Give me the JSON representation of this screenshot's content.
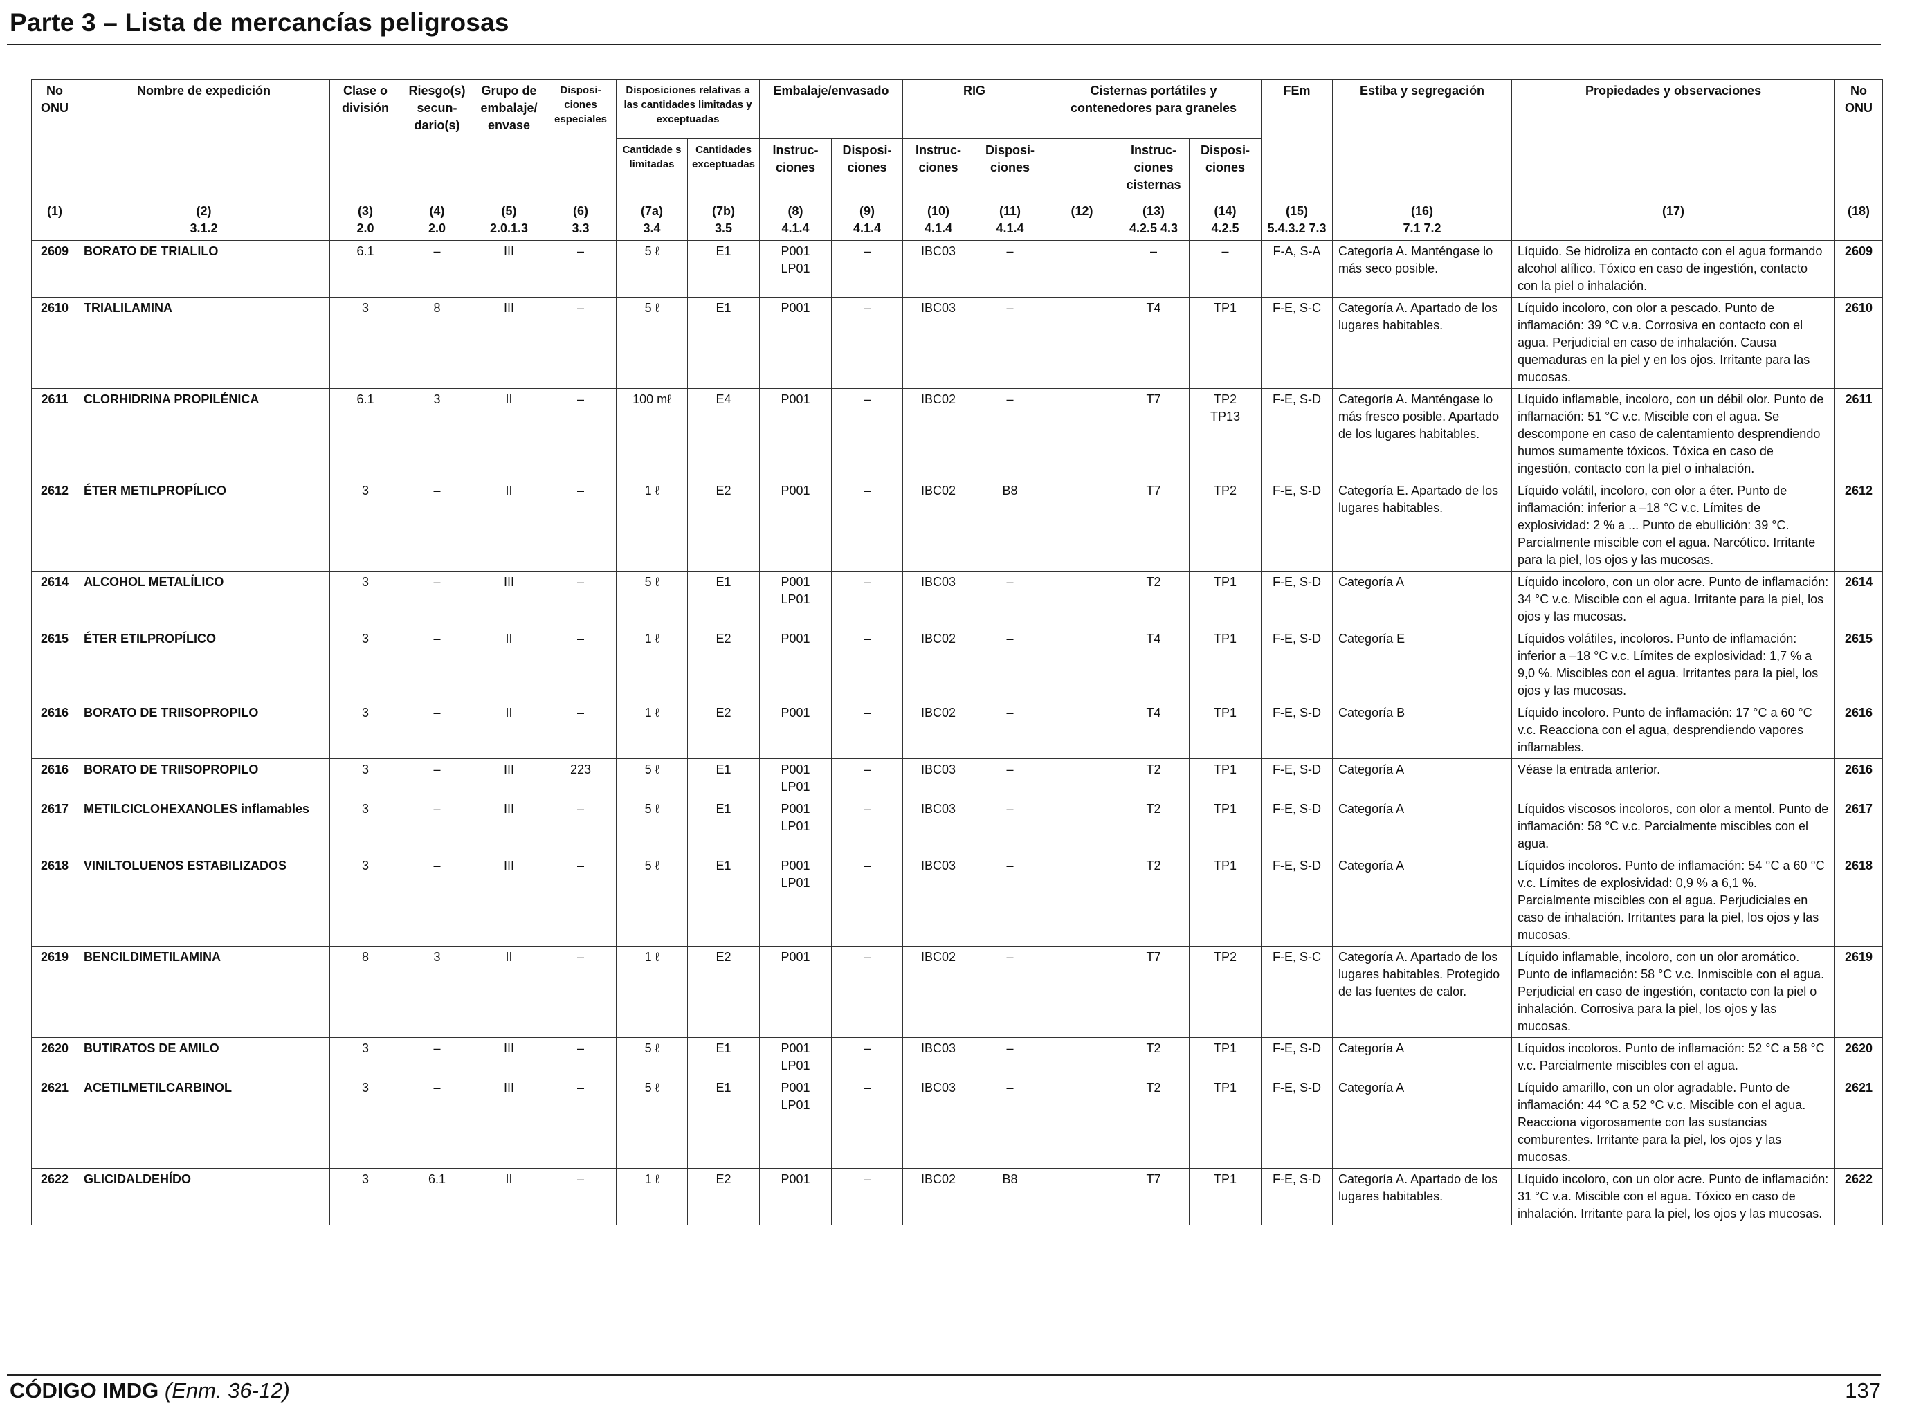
{
  "page": {
    "title": "Parte 3 – Lista de mercancías peligrosas",
    "footer_code": "CÓDIGO IMDG",
    "footer_amendment": "(Enm. 36-12)",
    "page_number": "137"
  },
  "headers": {
    "no_onu": "No ONU",
    "nombre": "Nombre de expedición",
    "clase": "Clase o división",
    "riesgos": "Riesgo(s) secun- dario(s)",
    "grupo": "Grupo de embalaje/ envase",
    "disposiciones_especiales": "Disposi- ciones especiales",
    "disposiciones_cantidades": "Disposiciones relativas a las cantidades limitadas y exceptuadas",
    "cantidades_limitadas": "Cantidade s limitadas",
    "cantidades_exceptuadas": "Cantidades exceptuadas",
    "embalaje": "Embalaje/envasado",
    "embalaje_instrucciones": "Instruc- ciones",
    "embalaje_disposiciones": "Disposi- ciones",
    "rig": "RIG",
    "rig_instrucciones": "Instruc- ciones",
    "rig_disposiciones": "Disposi- ciones",
    "cisternas": "Cisternas portátiles y contenedores para graneles",
    "cisternas_instrucciones": "Instruc- ciones cisternas",
    "cisternas_disposiciones": "Disposi- ciones",
    "fem": "FEm",
    "estiba": "Estiba y segregación",
    "propiedades": "Propiedades y observaciones",
    "no_onu_right": "No ONU"
  },
  "column_numbers": [
    {
      "n": "(1)",
      "ref": ""
    },
    {
      "n": "(2)",
      "ref": "3.1.2"
    },
    {
      "n": "(3)",
      "ref": "2.0"
    },
    {
      "n": "(4)",
      "ref": "2.0"
    },
    {
      "n": "(5)",
      "ref": "2.0.1.3"
    },
    {
      "n": "(6)",
      "ref": "3.3"
    },
    {
      "n": "(7a)",
      "ref": "3.4"
    },
    {
      "n": "(7b)",
      "ref": "3.5"
    },
    {
      "n": "(8)",
      "ref": "4.1.4"
    },
    {
      "n": "(9)",
      "ref": "4.1.4"
    },
    {
      "n": "(10)",
      "ref": "4.1.4"
    },
    {
      "n": "(11)",
      "ref": "4.1.4"
    },
    {
      "n": "(12)",
      "ref": ""
    },
    {
      "n": "(13)",
      "ref": "4.2.5 4.3"
    },
    {
      "n": "(14)",
      "ref": "4.2.5"
    },
    {
      "n": "(15)",
      "ref": "5.4.3.2 7.3"
    },
    {
      "n": "(16)",
      "ref": "7.1 7.2"
    },
    {
      "n": "(17)",
      "ref": ""
    },
    {
      "n": "(18)",
      "ref": ""
    }
  ],
  "rows": [
    {
      "un": "2609",
      "name": "BORATO DE TRIALILO",
      "clase": "6.1",
      "riesgo": "–",
      "grupo": "III",
      "disp_esp": "–",
      "cant_lim": "5 ℓ",
      "cant_exc": "E1",
      "emb_instr": "P001 LP01",
      "emb_disp": "–",
      "rig_instr": "IBC03",
      "rig_disp": "–",
      "col12": "",
      "cist_instr": "–",
      "cist_disp": "–",
      "fem": "F-A, S-A",
      "estiba": "Categoría A. Manténgase lo más seco posible.",
      "propiedades": "Líquido. Se hidroliza en contacto con el agua formando alcohol alílico. Tóxico en caso de ingestión, contacto con la piel o inhalación."
    },
    {
      "un": "2610",
      "name": "TRIALILAMINA",
      "clase": "3",
      "riesgo": "8",
      "grupo": "III",
      "disp_esp": "–",
      "cant_lim": "5 ℓ",
      "cant_exc": "E1",
      "emb_instr": "P001",
      "emb_disp": "–",
      "rig_instr": "IBC03",
      "rig_disp": "–",
      "col12": "",
      "cist_instr": "T4",
      "cist_disp": "TP1",
      "fem": "F-E, S-C",
      "estiba": "Categoría A. Apartado de los lugares habitables.",
      "propiedades": "Líquido incoloro, con olor a pescado. Punto de inflamación: 39 °C v.a. Corrosiva en contacto con el agua. Perjudicial en caso de inhalación. Causa quemaduras en la piel y en los ojos. Irritante para las mucosas."
    },
    {
      "un": "2611",
      "name": "CLORHIDRINA PROPILÉNICA",
      "clase": "6.1",
      "riesgo": "3",
      "grupo": "II",
      "disp_esp": "–",
      "cant_lim": "100 mℓ",
      "cant_exc": "E4",
      "emb_instr": "P001",
      "emb_disp": "–",
      "rig_instr": "IBC02",
      "rig_disp": "–",
      "col12": "",
      "cist_instr": "T7",
      "cist_disp": "TP2 TP13",
      "fem": "F-E, S-D",
      "estiba": "Categoría A. Manténgase lo más fresco posible. Apartado de los lugares habitables.",
      "propiedades": "Líquido inflamable, incoloro, con un débil olor. Punto de inflamación: 51 °C v.c. Miscible con el agua. Se descompone en caso de calentamiento desprendiendo humos sumamente tóxicos. Tóxica en caso de ingestión, contacto con la piel o inhalación."
    },
    {
      "un": "2612",
      "name": "ÉTER METILPROPÍLICO",
      "clase": "3",
      "riesgo": "–",
      "grupo": "II",
      "disp_esp": "–",
      "cant_lim": "1 ℓ",
      "cant_exc": "E2",
      "emb_instr": "P001",
      "emb_disp": "–",
      "rig_instr": "IBC02",
      "rig_disp": "B8",
      "col12": "",
      "cist_instr": "T7",
      "cist_disp": "TP2",
      "fem": "F-E, S-D",
      "estiba": "Categoría E. Apartado de los lugares habitables.",
      "propiedades": "Líquido volátil, incoloro, con olor a éter. Punto de inflamación: inferior a –18 °C v.c. Límites de explosividad: 2 % a ... Punto de ebullición: 39 °C. Parcialmente miscible con el agua. Narcótico. Irritante para la piel, los ojos y las mucosas."
    },
    {
      "un": "2614",
      "name": "ALCOHOL METALÍLICO",
      "clase": "3",
      "riesgo": "–",
      "grupo": "III",
      "disp_esp": "–",
      "cant_lim": "5 ℓ",
      "cant_exc": "E1",
      "emb_instr": "P001 LP01",
      "emb_disp": "–",
      "rig_instr": "IBC03",
      "rig_disp": "–",
      "col12": "",
      "cist_instr": "T2",
      "cist_disp": "TP1",
      "fem": "F-E, S-D",
      "estiba": "Categoría A",
      "propiedades": "Líquido incoloro, con un olor acre. Punto de inflamación: 34 °C v.c. Miscible con el agua. Irritante para la piel, los ojos y las mucosas."
    },
    {
      "un": "2615",
      "name": "ÉTER ETILPROPÍLICO",
      "clase": "3",
      "riesgo": "–",
      "grupo": "II",
      "disp_esp": "–",
      "cant_lim": "1 ℓ",
      "cant_exc": "E2",
      "emb_instr": "P001",
      "emb_disp": "–",
      "rig_instr": "IBC02",
      "rig_disp": "–",
      "col12": "",
      "cist_instr": "T4",
      "cist_disp": "TP1",
      "fem": "F-E, S-D",
      "estiba": "Categoría E",
      "propiedades": "Líquidos volátiles, incoloros. Punto de inflamación: inferior a –18 °C v.c. Límites de explosividad: 1,7 % a 9,0 %. Miscibles con el agua. Irritantes para la piel, los ojos y las mucosas."
    },
    {
      "un": "2616",
      "name": "BORATO DE TRIISOPROPILO",
      "clase": "3",
      "riesgo": "–",
      "grupo": "II",
      "disp_esp": "–",
      "cant_lim": "1 ℓ",
      "cant_exc": "E2",
      "emb_instr": "P001",
      "emb_disp": "–",
      "rig_instr": "IBC02",
      "rig_disp": "–",
      "col12": "",
      "cist_instr": "T4",
      "cist_disp": "TP1",
      "fem": "F-E, S-D",
      "estiba": "Categoría B",
      "propiedades": "Líquido incoloro. Punto de inflamación: 17 °C a 60 °C v.c. Reacciona con el agua, desprendiendo vapores inflamables."
    },
    {
      "un": "2616",
      "name": "BORATO DE TRIISOPROPILO",
      "clase": "3",
      "riesgo": "–",
      "grupo": "III",
      "disp_esp": "223",
      "cant_lim": "5 ℓ",
      "cant_exc": "E1",
      "emb_instr": "P001 LP01",
      "emb_disp": "–",
      "rig_instr": "IBC03",
      "rig_disp": "–",
      "col12": "",
      "cist_instr": "T2",
      "cist_disp": "TP1",
      "fem": "F-E, S-D",
      "estiba": "Categoría A",
      "propiedades": "Véase la entrada anterior."
    },
    {
      "un": "2617",
      "name": "METILCICLOHEXANOLES inflamables",
      "clase": "3",
      "riesgo": "–",
      "grupo": "III",
      "disp_esp": "–",
      "cant_lim": "5 ℓ",
      "cant_exc": "E1",
      "emb_instr": "P001 LP01",
      "emb_disp": "–",
      "rig_instr": "IBC03",
      "rig_disp": "–",
      "col12": "",
      "cist_instr": "T2",
      "cist_disp": "TP1",
      "fem": "F-E, S-D",
      "estiba": "Categoría A",
      "propiedades": "Líquidos viscosos incoloros, con olor a mentol. Punto de inflamación: 58 °C v.c. Parcialmente miscibles con el agua."
    },
    {
      "un": "2618",
      "name": "VINILTOLUENOS ESTABILIZADOS",
      "clase": "3",
      "riesgo": "–",
      "grupo": "III",
      "disp_esp": "–",
      "cant_lim": "5 ℓ",
      "cant_exc": "E1",
      "emb_instr": "P001 LP01",
      "emb_disp": "–",
      "rig_instr": "IBC03",
      "rig_disp": "–",
      "col12": "",
      "cist_instr": "T2",
      "cist_disp": "TP1",
      "fem": "F-E, S-D",
      "estiba": "Categoría A",
      "propiedades": "Líquidos incoloros. Punto de inflamación: 54 °C a 60 °C v.c. Límites de explosividad: 0,9 % a 6,1 %. Parcialmente miscibles con el agua. Perjudiciales en caso de inhalación. Irritantes para la piel, los ojos y las mucosas."
    },
    {
      "un": "2619",
      "name": "BENCILDIMETILAMINA",
      "clase": "8",
      "riesgo": "3",
      "grupo": "II",
      "disp_esp": "–",
      "cant_lim": "1 ℓ",
      "cant_exc": "E2",
      "emb_instr": "P001",
      "emb_disp": "–",
      "rig_instr": "IBC02",
      "rig_disp": "–",
      "col12": "",
      "cist_instr": "T7",
      "cist_disp": "TP2",
      "fem": "F-E, S-C",
      "estiba": "Categoría A. Apartado de los lugares habitables. Protegido de las fuentes de calor.",
      "propiedades": "Líquido inflamable, incoloro, con un olor aromático. Punto de inflamación: 58 °C v.c. Inmiscible con el agua. Perjudicial en caso de ingestión, contacto con la piel o inhalación. Corrosiva para la piel, los ojos y las mucosas."
    },
    {
      "un": "2620",
      "name": "BUTIRATOS DE AMILO",
      "clase": "3",
      "riesgo": "–",
      "grupo": "III",
      "disp_esp": "–",
      "cant_lim": "5 ℓ",
      "cant_exc": "E1",
      "emb_instr": "P001 LP01",
      "emb_disp": "–",
      "rig_instr": "IBC03",
      "rig_disp": "–",
      "col12": "",
      "cist_instr": "T2",
      "cist_disp": "TP1",
      "fem": "F-E, S-D",
      "estiba": "Categoría A",
      "propiedades": "Líquidos incoloros. Punto de inflamación: 52 °C a 58 °C v.c. Parcialmente miscibles con el agua."
    },
    {
      "un": "2621",
      "name": "ACETILMETILCARBINOL",
      "clase": "3",
      "riesgo": "–",
      "grupo": "III",
      "disp_esp": "–",
      "cant_lim": "5 ℓ",
      "cant_exc": "E1",
      "emb_instr": "P001 LP01",
      "emb_disp": "–",
      "rig_instr": "IBC03",
      "rig_disp": "–",
      "col12": "",
      "cist_instr": "T2",
      "cist_disp": "TP1",
      "fem": "F-E, S-D",
      "estiba": "Categoría A",
      "propiedades": "Líquido amarillo, con un olor agradable. Punto de inflamación: 44 °C a 52 °C v.c. Miscible con el agua. Reacciona vigorosamente con las sustancias comburentes. Irritante para la piel, los ojos y las mucosas."
    },
    {
      "un": "2622",
      "name": "GLICIDALDEHÍDO",
      "clase": "3",
      "riesgo": "6.1",
      "grupo": "II",
      "disp_esp": "–",
      "cant_lim": "1 ℓ",
      "cant_exc": "E2",
      "emb_instr": "P001",
      "emb_disp": "–",
      "rig_instr": "IBC02",
      "rig_disp": "B8",
      "col12": "",
      "cist_instr": "T7",
      "cist_disp": "TP1",
      "fem": "F-E, S-D",
      "estiba": "Categoría A. Apartado de los lugares habitables.",
      "propiedades": "Líquido incoloro, con un olor acre. Punto de inflamación: 31 °C v.a. Miscible con el agua. Tóxico en caso de inhalación. Irritante para la piel, los ojos y las mucosas."
    }
  ]
}
